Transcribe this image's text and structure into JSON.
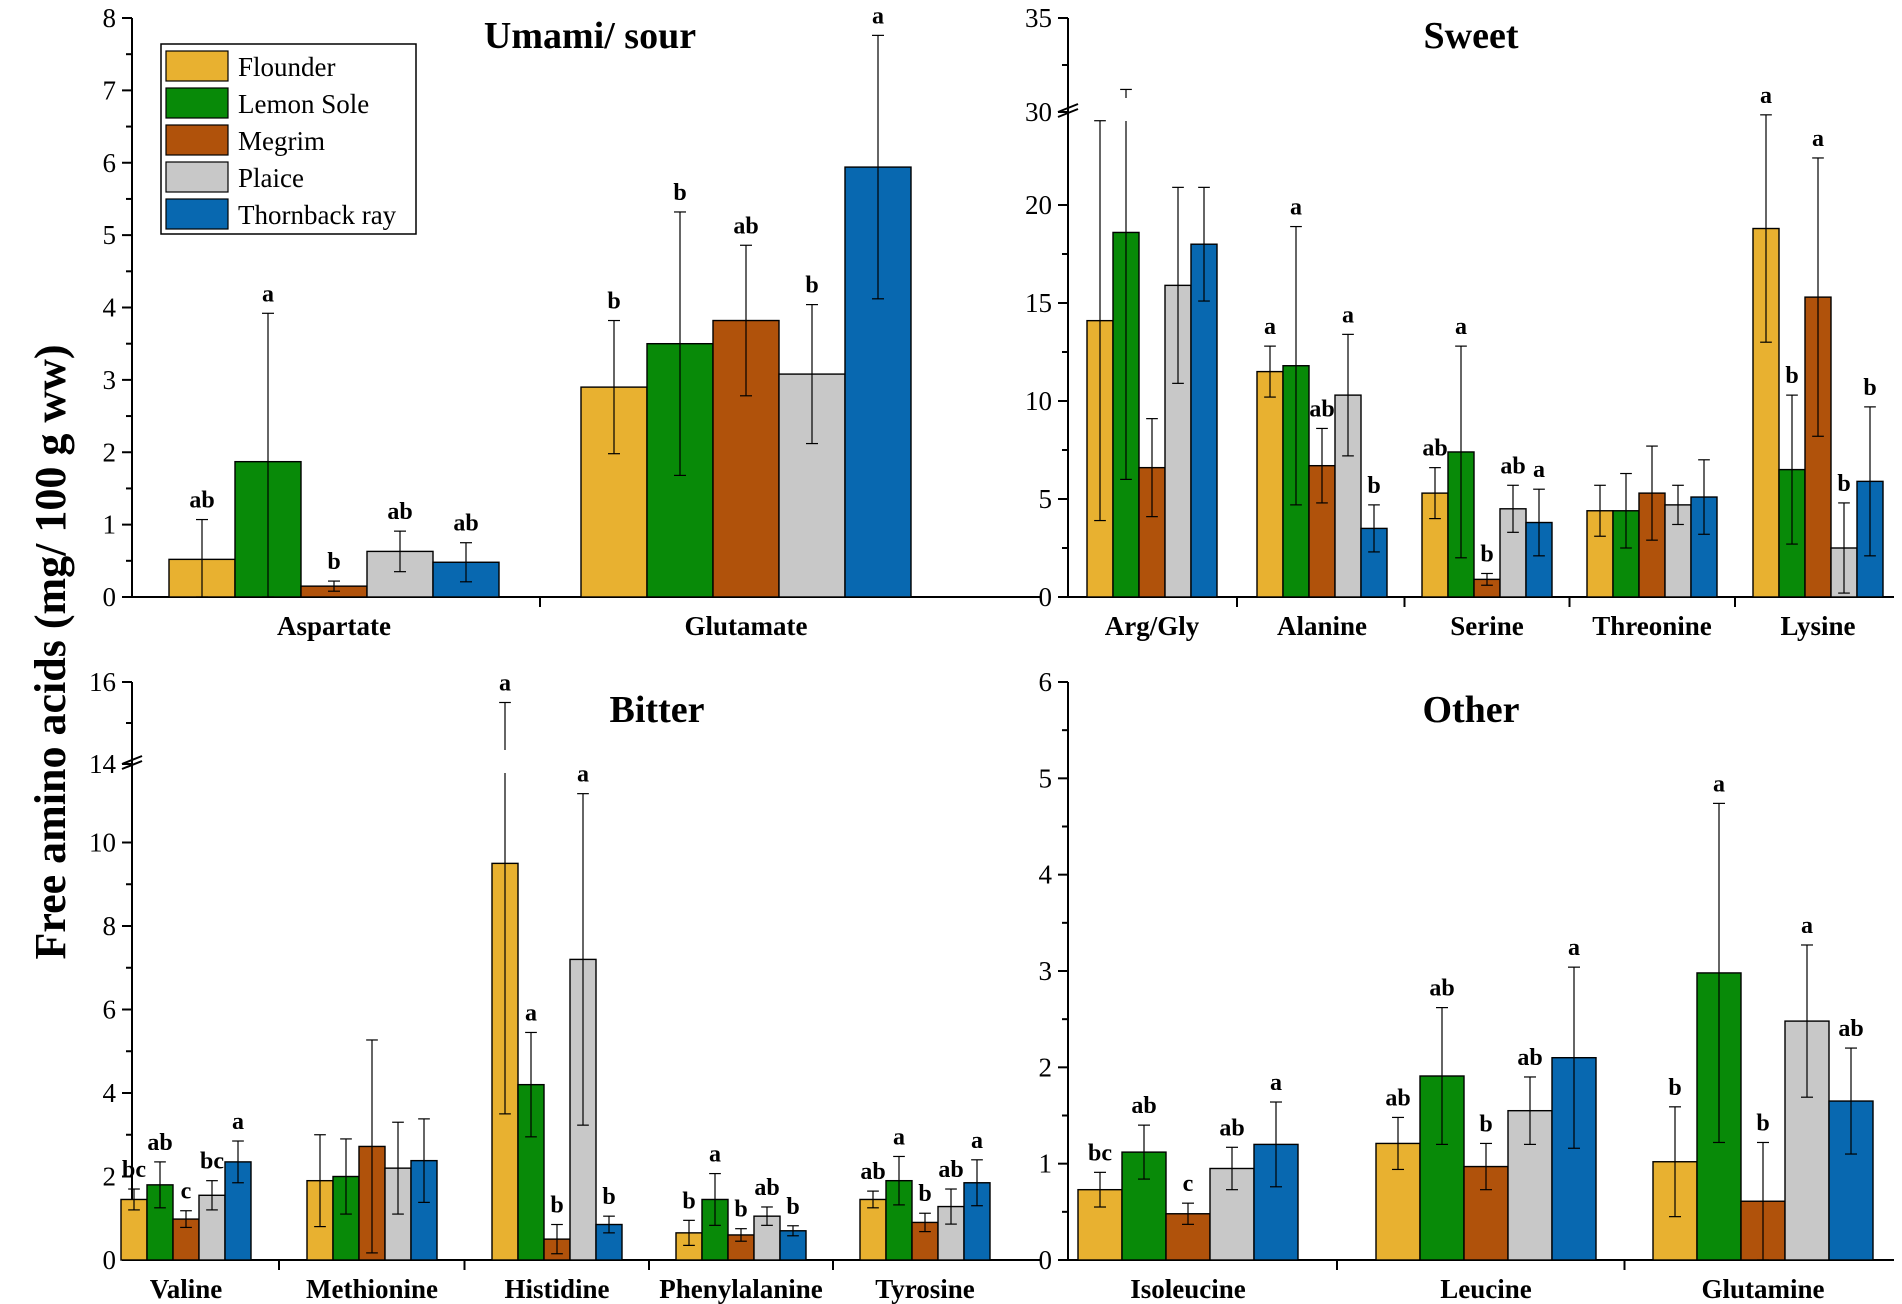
{
  "ylabel": "Free amino acids (mg/ 100 g ww)",
  "legend": [
    {
      "name": "Flounder",
      "color": "#E8B130"
    },
    {
      "name": "Lemon Sole",
      "color": "#088A08"
    },
    {
      "name": "Megrim",
      "color": "#B0520B"
    },
    {
      "name": "Plaice",
      "color": "#C8C8C8"
    },
    {
      "name": "Thornback ray",
      "color": "#0868B0"
    }
  ],
  "chart_data": [
    {
      "id": "umami",
      "type": "bar",
      "title": "Umami/ sour",
      "categories": [
        "Aspartate",
        "Glutamate"
      ],
      "yticks": [
        0,
        1,
        2,
        3,
        4,
        5,
        6,
        7,
        8
      ],
      "ylim": [
        0,
        8
      ],
      "break": null,
      "series": [
        {
          "name": "Flounder",
          "values": [
            0.52,
            2.9
          ],
          "err": [
            0.55,
            0.92
          ],
          "letters": [
            "ab",
            "b"
          ]
        },
        {
          "name": "Lemon Sole",
          "values": [
            1.87,
            3.5
          ],
          "err": [
            2.05,
            1.82
          ],
          "letters": [
            "a",
            "b"
          ]
        },
        {
          "name": "Megrim",
          "values": [
            0.15,
            3.82
          ],
          "err": [
            0.07,
            1.04
          ],
          "letters": [
            "b",
            "ab"
          ]
        },
        {
          "name": "Plaice",
          "values": [
            0.63,
            3.08
          ],
          "err": [
            0.28,
            0.96
          ],
          "letters": [
            "ab",
            "b"
          ]
        },
        {
          "name": "Thornback ray",
          "values": [
            0.48,
            5.94
          ],
          "err": [
            0.27,
            1.82
          ],
          "letters": [
            "ab",
            "a"
          ]
        }
      ]
    },
    {
      "id": "sweet",
      "type": "bar",
      "title": "Sweet",
      "categories": [
        "Arg/Gly",
        "Alanine",
        "Serine",
        "Threonine",
        "Lysine"
      ],
      "yticks": [
        0,
        5,
        10,
        15,
        20,
        30,
        35
      ],
      "ylim": [
        0,
        35
      ],
      "break": {
        "low": 25,
        "high": 30
      },
      "series": [
        {
          "name": "Flounder",
          "values": [
            14.1,
            11.5,
            5.3,
            4.4,
            18.8
          ],
          "err": [
            10.2,
            1.3,
            1.3,
            1.3,
            5.8
          ],
          "letters": [
            "",
            "a",
            "ab",
            "",
            "a"
          ]
        },
        {
          "name": "Lemon Sole",
          "values": [
            18.6,
            11.8,
            7.4,
            4.4,
            6.5
          ],
          "err": [
            12.6,
            7.1,
            5.4,
            1.9,
            3.8
          ],
          "letters": [
            "",
            "a",
            "a",
            "",
            "b"
          ]
        },
        {
          "name": "Megrim",
          "values": [
            6.6,
            6.7,
            0.9,
            5.3,
            15.3
          ],
          "err": [
            2.5,
            1.9,
            0.3,
            2.4,
            7.1
          ],
          "letters": [
            "",
            "ab",
            "b",
            "",
            "a"
          ]
        },
        {
          "name": "Plaice",
          "values": [
            15.9,
            10.3,
            4.5,
            4.7,
            2.5
          ],
          "err": [
            5.0,
            3.1,
            1.2,
            1.0,
            2.3
          ],
          "letters": [
            "",
            "a",
            "ab",
            "",
            "b"
          ]
        },
        {
          "name": "Thornback ray",
          "values": [
            18.0,
            3.5,
            3.8,
            5.1,
            5.9
          ],
          "err": [
            2.9,
            1.2,
            1.7,
            1.9,
            3.8
          ],
          "letters": [
            "",
            "b",
            "a",
            "",
            "b"
          ]
        }
      ]
    },
    {
      "id": "bitter",
      "type": "bar",
      "title": "Bitter",
      "categories": [
        "Valine",
        "Methionine",
        "Histidine",
        "Phenylalanine",
        "Tyrosine"
      ],
      "yticks": [
        0,
        2,
        4,
        6,
        8,
        10,
        14,
        16
      ],
      "ylim": [
        0,
        16
      ],
      "break": {
        "low": 12,
        "high": 14
      },
      "series": [
        {
          "name": "Flounder",
          "values": [
            1.45,
            1.9,
            9.5,
            0.65,
            1.45
          ],
          "err": [
            0.25,
            1.1,
            6.0,
            0.3,
            0.2
          ],
          "letters": [
            "bc",
            "",
            "a",
            "b",
            "ab"
          ]
        },
        {
          "name": "Lemon Sole",
          "values": [
            1.8,
            2.0,
            4.2,
            1.45,
            1.9
          ],
          "err": [
            0.55,
            0.9,
            1.25,
            0.62,
            0.58
          ],
          "letters": [
            "ab",
            "",
            "a",
            "a",
            "a"
          ]
        },
        {
          "name": "Megrim",
          "values": [
            0.98,
            2.72,
            0.5,
            0.6,
            0.9
          ],
          "err": [
            0.2,
            2.55,
            0.35,
            0.15,
            0.22
          ],
          "letters": [
            "c",
            "",
            "b",
            "b",
            "b"
          ]
        },
        {
          "name": "Plaice",
          "values": [
            1.55,
            2.2,
            7.2,
            1.05,
            1.28
          ],
          "err": [
            0.35,
            1.1,
            3.97,
            0.22,
            0.42
          ],
          "letters": [
            "bc",
            "",
            "a",
            "ab",
            "ab"
          ]
        },
        {
          "name": "Thornback ray",
          "values": [
            2.35,
            2.38,
            0.85,
            0.7,
            1.85
          ],
          "err": [
            0.5,
            1.0,
            0.2,
            0.12,
            0.55
          ],
          "letters": [
            "a",
            "",
            "b",
            "b",
            "a"
          ]
        }
      ]
    },
    {
      "id": "other",
      "type": "bar",
      "title": "Other",
      "categories": [
        "Isoleucine",
        "Leucine",
        "Glutamine"
      ],
      "yticks": [
        0,
        1,
        2,
        3,
        4,
        5,
        6
      ],
      "ylim": [
        0,
        6
      ],
      "break": null,
      "series": [
        {
          "name": "Flounder",
          "values": [
            0.73,
            1.21,
            1.02
          ],
          "err": [
            0.18,
            0.27,
            0.57
          ],
          "letters": [
            "bc",
            "ab",
            "b"
          ]
        },
        {
          "name": "Lemon Sole",
          "values": [
            1.12,
            1.91,
            2.98
          ],
          "err": [
            0.28,
            0.71,
            1.76
          ],
          "letters": [
            "ab",
            "ab",
            "a"
          ]
        },
        {
          "name": "Megrim",
          "values": [
            0.48,
            0.97,
            0.61
          ],
          "err": [
            0.11,
            0.24,
            0.61
          ],
          "letters": [
            "c",
            "b",
            "b"
          ]
        },
        {
          "name": "Plaice",
          "values": [
            0.95,
            1.55,
            2.48
          ],
          "err": [
            0.22,
            0.35,
            0.79
          ],
          "letters": [
            "ab",
            "ab",
            "a"
          ]
        },
        {
          "name": "Thornback ray",
          "values": [
            1.2,
            2.1,
            1.65
          ],
          "err": [
            0.44,
            0.94,
            0.55
          ],
          "letters": [
            "a",
            "a",
            "ab"
          ]
        }
      ]
    }
  ]
}
